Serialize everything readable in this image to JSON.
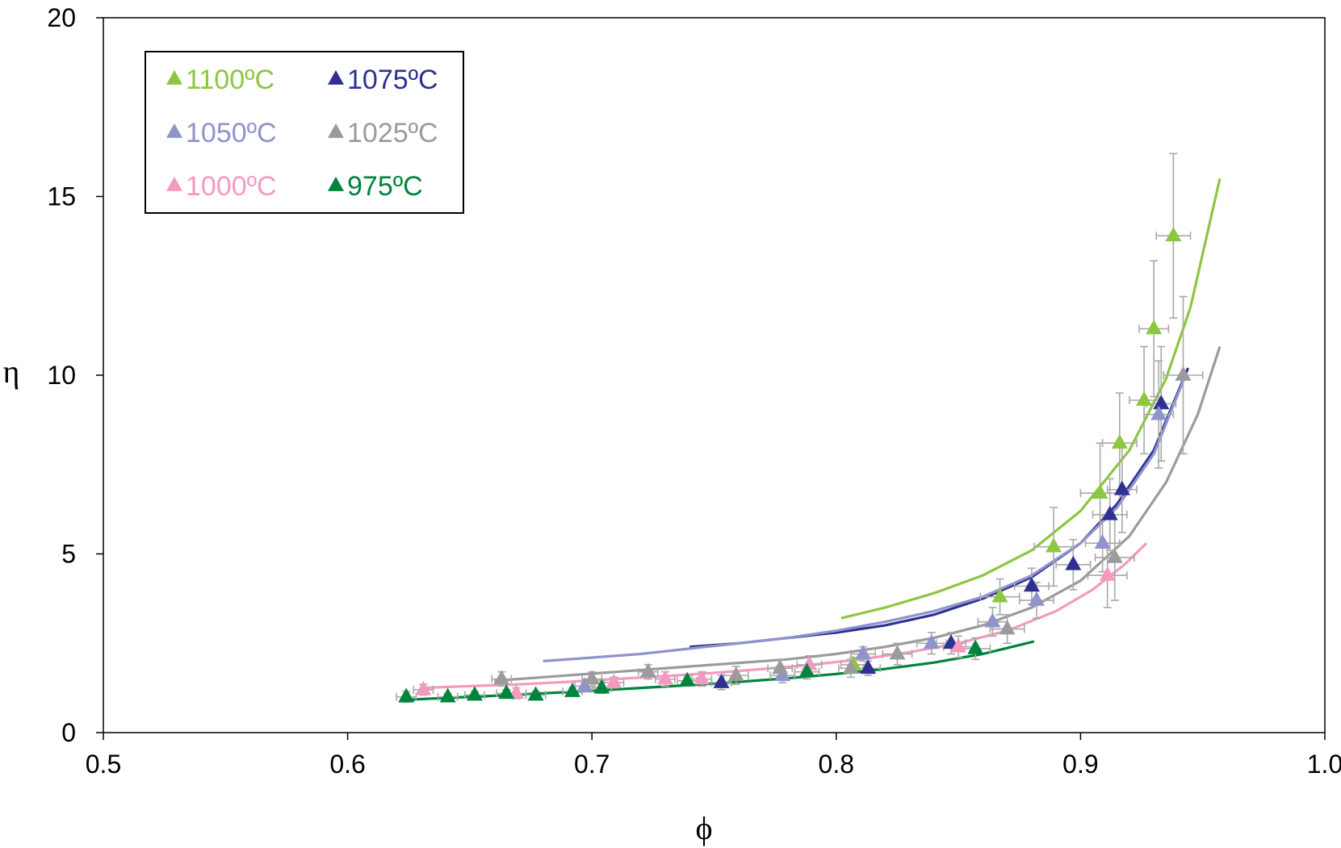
{
  "chart_data": {
    "type": "scatter",
    "title": "",
    "xlabel": "ϕ",
    "ylabel": "η",
    "xlim": [
      0.5,
      1.0
    ],
    "ylim": [
      0,
      20
    ],
    "x_ticks": [
      "0.5",
      "0.6",
      "0.7",
      "0.8",
      "0.9",
      "1.0"
    ],
    "y_ticks": [
      "0",
      "5",
      "10",
      "15",
      "20"
    ],
    "grid": false,
    "legend_placement": "top-left",
    "series": [
      {
        "name": "1100ºC",
        "color": "#8dc63f",
        "points": [
          {
            "x": 0.807,
            "y": 1.9,
            "xerr": 0.005,
            "yerr": 0.2
          },
          {
            "x": 0.867,
            "y": 3.8,
            "xerr": 0.008,
            "yerr": 0.5
          },
          {
            "x": 0.889,
            "y": 5.2,
            "xerr": 0.008,
            "yerr": 1.1
          },
          {
            "x": 0.908,
            "y": 6.7,
            "xerr": 0.008,
            "yerr": 1.4
          },
          {
            "x": 0.916,
            "y": 8.1,
            "xerr": 0.007,
            "yerr": 1.4
          },
          {
            "x": 0.926,
            "y": 9.3,
            "xerr": 0.006,
            "yerr": 1.5
          },
          {
            "x": 0.93,
            "y": 11.3,
            "xerr": 0.006,
            "yerr": 1.9
          },
          {
            "x": 0.938,
            "y": 13.9,
            "xerr": 0.007,
            "yerr": 2.3
          }
        ],
        "fit": {
          "x": [
            0.802,
            0.82,
            0.84,
            0.86,
            0.88,
            0.9,
            0.92,
            0.935,
            0.945,
            0.957
          ],
          "y": [
            3.2,
            3.5,
            3.9,
            4.4,
            5.1,
            6.2,
            7.9,
            9.9,
            11.9,
            15.5
          ]
        }
      },
      {
        "name": "1075ºC",
        "color": "#2e3192",
        "points": [
          {
            "x": 0.753,
            "y": 1.4,
            "xerr": 0.004,
            "yerr": 0.2
          },
          {
            "x": 0.813,
            "y": 1.8,
            "xerr": 0.005,
            "yerr": 0.2
          },
          {
            "x": 0.847,
            "y": 2.5,
            "xerr": 0.006,
            "yerr": 0.3
          },
          {
            "x": 0.88,
            "y": 4.1,
            "xerr": 0.007,
            "yerr": 0.5
          },
          {
            "x": 0.897,
            "y": 4.7,
            "xerr": 0.007,
            "yerr": 0.7
          },
          {
            "x": 0.912,
            "y": 6.1,
            "xerr": 0.007,
            "yerr": 1.0
          },
          {
            "x": 0.917,
            "y": 6.8,
            "xerr": 0.006,
            "yerr": 1.2
          },
          {
            "x": 0.933,
            "y": 9.2,
            "xerr": 0.006,
            "yerr": 1.6
          }
        ],
        "fit": {
          "x": [
            0.74,
            0.76,
            0.78,
            0.8,
            0.82,
            0.84,
            0.86,
            0.88,
            0.9,
            0.915,
            0.93,
            0.944
          ],
          "y": [
            2.4,
            2.5,
            2.65,
            2.8,
            3.0,
            3.3,
            3.75,
            4.35,
            5.3,
            6.4,
            7.9,
            10.2
          ]
        }
      },
      {
        "name": "1050ºC",
        "color": "#8f94cc",
        "points": [
          {
            "x": 0.697,
            "y": 1.3,
            "xerr": 0.004,
            "yerr": 0.15
          },
          {
            "x": 0.778,
            "y": 1.6,
            "xerr": 0.005,
            "yerr": 0.2
          },
          {
            "x": 0.811,
            "y": 2.2,
            "xerr": 0.005,
            "yerr": 0.2
          },
          {
            "x": 0.839,
            "y": 2.5,
            "xerr": 0.006,
            "yerr": 0.3
          },
          {
            "x": 0.864,
            "y": 3.1,
            "xerr": 0.006,
            "yerr": 0.4
          },
          {
            "x": 0.882,
            "y": 3.7,
            "xerr": 0.007,
            "yerr": 0.5
          },
          {
            "x": 0.909,
            "y": 5.3,
            "xerr": 0.007,
            "yerr": 0.8
          },
          {
            "x": 0.932,
            "y": 8.9,
            "xerr": 0.006,
            "yerr": 1.5
          }
        ],
        "fit": {
          "x": [
            0.68,
            0.7,
            0.72,
            0.74,
            0.76,
            0.78,
            0.8,
            0.82,
            0.84,
            0.86,
            0.88,
            0.9,
            0.915,
            0.93,
            0.943
          ],
          "y": [
            2.0,
            2.1,
            2.2,
            2.35,
            2.5,
            2.65,
            2.85,
            3.1,
            3.4,
            3.8,
            4.4,
            5.3,
            6.3,
            7.8,
            10.0
          ]
        }
      },
      {
        "name": "1025ºC",
        "color": "#9b9b9b",
        "points": [
          {
            "x": 0.663,
            "y": 1.5,
            "xerr": 0.004,
            "yerr": 0.2
          },
          {
            "x": 0.7,
            "y": 1.5,
            "xerr": 0.004,
            "yerr": 0.2
          },
          {
            "x": 0.723,
            "y": 1.7,
            "xerr": 0.004,
            "yerr": 0.2
          },
          {
            "x": 0.759,
            "y": 1.6,
            "xerr": 0.005,
            "yerr": 0.25
          },
          {
            "x": 0.777,
            "y": 1.8,
            "xerr": 0.005,
            "yerr": 0.25
          },
          {
            "x": 0.806,
            "y": 1.8,
            "xerr": 0.005,
            "yerr": 0.25
          },
          {
            "x": 0.825,
            "y": 2.2,
            "xerr": 0.006,
            "yerr": 0.3
          },
          {
            "x": 0.87,
            "y": 2.9,
            "xerr": 0.007,
            "yerr": 0.4
          },
          {
            "x": 0.914,
            "y": 4.9,
            "xerr": 0.008,
            "yerr": 1.2
          },
          {
            "x": 0.942,
            "y": 10.0,
            "xerr": 0.008,
            "yerr": 2.2
          }
        ],
        "fit": {
          "x": [
            0.66,
            0.68,
            0.7,
            0.72,
            0.74,
            0.76,
            0.78,
            0.8,
            0.82,
            0.84,
            0.86,
            0.88,
            0.9,
            0.92,
            0.935,
            0.948,
            0.957
          ],
          "y": [
            1.45,
            1.55,
            1.65,
            1.75,
            1.85,
            1.95,
            2.05,
            2.2,
            2.4,
            2.65,
            3.0,
            3.5,
            4.25,
            5.5,
            7.0,
            8.9,
            10.8
          ]
        }
      },
      {
        "name": "1000ºC",
        "color": "#f49ac1",
        "points": [
          {
            "x": 0.631,
            "y": 1.2,
            "xerr": 0.004,
            "yerr": 0.15
          },
          {
            "x": 0.669,
            "y": 1.1,
            "xerr": 0.004,
            "yerr": 0.15
          },
          {
            "x": 0.709,
            "y": 1.4,
            "xerr": 0.004,
            "yerr": 0.15
          },
          {
            "x": 0.73,
            "y": 1.5,
            "xerr": 0.004,
            "yerr": 0.2
          },
          {
            "x": 0.745,
            "y": 1.5,
            "xerr": 0.004,
            "yerr": 0.2
          },
          {
            "x": 0.789,
            "y": 1.9,
            "xerr": 0.005,
            "yerr": 0.25
          },
          {
            "x": 0.85,
            "y": 2.4,
            "xerr": 0.006,
            "yerr": 0.3
          },
          {
            "x": 0.911,
            "y": 4.4,
            "xerr": 0.008,
            "yerr": 0.9
          }
        ],
        "fit": {
          "x": [
            0.63,
            0.65,
            0.67,
            0.69,
            0.71,
            0.73,
            0.75,
            0.77,
            0.79,
            0.81,
            0.83,
            0.85,
            0.87,
            0.89,
            0.905,
            0.918,
            0.927
          ],
          "y": [
            1.25,
            1.3,
            1.35,
            1.42,
            1.5,
            1.58,
            1.67,
            1.78,
            1.9,
            2.05,
            2.25,
            2.5,
            2.85,
            3.4,
            4.0,
            4.7,
            5.3
          ]
        }
      },
      {
        "name": "975ºC",
        "color": "#00843d",
        "points": [
          {
            "x": 0.624,
            "y": 1.0,
            "xerr": 0.004,
            "yerr": 0.15
          },
          {
            "x": 0.641,
            "y": 1.0,
            "xerr": 0.004,
            "yerr": 0.1
          },
          {
            "x": 0.652,
            "y": 1.05,
            "xerr": 0.004,
            "yerr": 0.1
          },
          {
            "x": 0.665,
            "y": 1.1,
            "xerr": 0.004,
            "yerr": 0.1
          },
          {
            "x": 0.677,
            "y": 1.05,
            "xerr": 0.004,
            "yerr": 0.1
          },
          {
            "x": 0.692,
            "y": 1.15,
            "xerr": 0.004,
            "yerr": 0.1
          },
          {
            "x": 0.704,
            "y": 1.25,
            "xerr": 0.004,
            "yerr": 0.15
          },
          {
            "x": 0.739,
            "y": 1.45,
            "xerr": 0.004,
            "yerr": 0.15
          },
          {
            "x": 0.788,
            "y": 1.7,
            "xerr": 0.005,
            "yerr": 0.2
          },
          {
            "x": 0.857,
            "y": 2.35,
            "xerr": 0.006,
            "yerr": 0.3
          }
        ],
        "fit": {
          "x": [
            0.625,
            0.64,
            0.66,
            0.68,
            0.7,
            0.72,
            0.74,
            0.76,
            0.78,
            0.8,
            0.82,
            0.84,
            0.86,
            0.881
          ],
          "y": [
            0.92,
            0.97,
            1.03,
            1.1,
            1.17,
            1.25,
            1.33,
            1.42,
            1.52,
            1.64,
            1.78,
            1.96,
            2.2,
            2.55
          ]
        }
      }
    ]
  }
}
